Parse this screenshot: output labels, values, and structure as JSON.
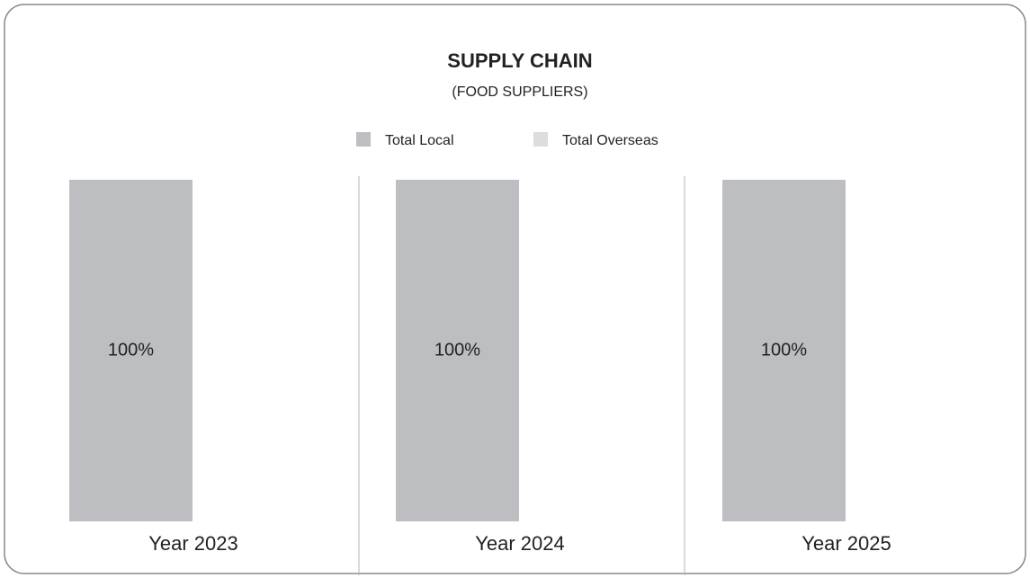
{
  "chart_data": {
    "type": "bar",
    "stacked": true,
    "title": "SUPPLY CHAIN",
    "subtitle": "(FOOD SUPPLIERS)",
    "categories": [
      "Year 2023",
      "Year 2024",
      "Year 2025"
    ],
    "series": [
      {
        "name": "Total Local",
        "color": "#bdbec2",
        "values": [
          100,
          100,
          100
        ],
        "value_labels": [
          "100%",
          "100%",
          "100%"
        ]
      },
      {
        "name": "Total Overseas",
        "color": "#dddddf",
        "values": [
          0,
          0,
          0
        ]
      }
    ],
    "ylim": [
      0,
      100
    ]
  }
}
